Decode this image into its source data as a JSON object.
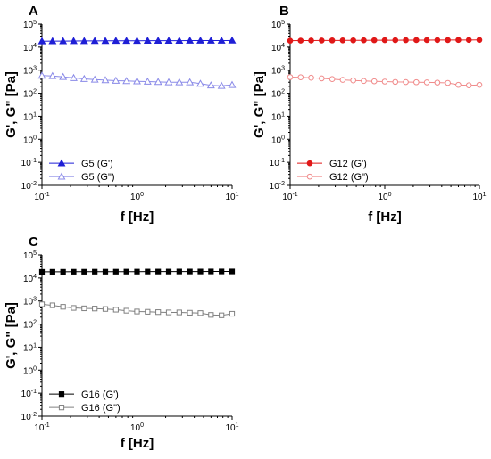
{
  "chart_data": [
    {
      "panel": "A",
      "type": "scatter",
      "xscale": "log",
      "yscale": "log",
      "xlim": [
        0.1,
        10
      ],
      "ylim": [
        0.01,
        100000
      ],
      "xlabel": "f [Hz]",
      "ylabel": "G', G\" [Pa]",
      "x_ticks": [
        "10",
        "10",
        "10"
      ],
      "x_tick_exps": [
        "-1",
        "0",
        "1"
      ],
      "y_ticks": [
        "10",
        "10",
        "10",
        "10",
        "10",
        "10",
        "10",
        "10"
      ],
      "y_tick_exps": [
        "-2",
        "-1",
        "0",
        "1",
        "2",
        "3",
        "4",
        "5"
      ],
      "legend_position": "lower-left",
      "series": [
        {
          "name": "G5 (G')",
          "color": "#1f1fd6",
          "marker": "triangle",
          "filled": true,
          "x": [
            0.1,
            0.1292,
            0.1668,
            0.2154,
            0.2783,
            0.3594,
            0.4642,
            0.5995,
            0.7743,
            1.0,
            1.2915,
            1.6681,
            2.1544,
            2.7826,
            3.5938,
            4.6416,
            5.9948,
            7.7426,
            10.0
          ],
          "y": [
            18000,
            18200,
            18300,
            18400,
            18500,
            18600,
            18700,
            18800,
            18800,
            18900,
            19000,
            19000,
            19100,
            19100,
            19200,
            19200,
            19300,
            19300,
            19400
          ]
        },
        {
          "name": "G5 (G\")",
          "color": "#8a8ae8",
          "marker": "triangle",
          "filled": false,
          "x": [
            0.1,
            0.1292,
            0.1668,
            0.2154,
            0.2783,
            0.3594,
            0.4642,
            0.5995,
            0.7743,
            1.0,
            1.2915,
            1.6681,
            2.1544,
            2.7826,
            3.5938,
            4.6416,
            5.9948,
            7.7426,
            10.0
          ],
          "y": [
            580,
            560,
            510,
            460,
            420,
            390,
            370,
            350,
            340,
            330,
            320,
            310,
            300,
            300,
            300,
            260,
            220,
            210,
            230
          ]
        }
      ]
    },
    {
      "panel": "B",
      "type": "scatter",
      "xscale": "log",
      "yscale": "log",
      "xlim": [
        0.1,
        10
      ],
      "ylim": [
        0.01,
        100000
      ],
      "xlabel": "f [Hz]",
      "ylabel": "G', G\" [Pa]",
      "x_ticks": [
        "10",
        "10",
        "10"
      ],
      "x_tick_exps": [
        "-1",
        "0",
        "1"
      ],
      "y_ticks": [
        "10",
        "10",
        "10",
        "10",
        "10",
        "10",
        "10",
        "10"
      ],
      "y_tick_exps": [
        "-2",
        "-1",
        "0",
        "1",
        "2",
        "3",
        "4",
        "5"
      ],
      "legend_position": "lower-left",
      "series": [
        {
          "name": "G12 (G')",
          "color": "#e01818",
          "marker": "circle",
          "filled": true,
          "x": [
            0.1,
            0.1292,
            0.1668,
            0.2154,
            0.2783,
            0.3594,
            0.4642,
            0.5995,
            0.7743,
            1.0,
            1.2915,
            1.6681,
            2.1544,
            2.7826,
            3.5938,
            4.6416,
            5.9948,
            7.7426,
            10.0
          ],
          "y": [
            19000,
            19200,
            19300,
            19400,
            19500,
            19600,
            19700,
            19800,
            19900,
            20000,
            20000,
            20100,
            20200,
            20200,
            20300,
            20300,
            20400,
            20400,
            20500
          ]
        },
        {
          "name": "G12 (G\")",
          "color": "#f08a8a",
          "marker": "circle",
          "filled": false,
          "x": [
            0.1,
            0.1292,
            0.1668,
            0.2154,
            0.2783,
            0.3594,
            0.4642,
            0.5995,
            0.7743,
            1.0,
            1.2915,
            1.6681,
            2.1544,
            2.7826,
            3.5938,
            4.6416,
            5.9948,
            7.7426,
            10.0
          ],
          "y": [
            500,
            490,
            470,
            440,
            410,
            380,
            360,
            340,
            330,
            320,
            310,
            305,
            300,
            295,
            290,
            280,
            230,
            220,
            230
          ]
        }
      ]
    },
    {
      "panel": "C",
      "type": "scatter",
      "xscale": "log",
      "yscale": "log",
      "xlim": [
        0.1,
        10
      ],
      "ylim": [
        0.01,
        100000
      ],
      "xlabel": "f [Hz]",
      "ylabel": "G', G\" [Pa]",
      "x_ticks": [
        "10",
        "10",
        "10"
      ],
      "x_tick_exps": [
        "-1",
        "0",
        "1"
      ],
      "y_ticks": [
        "10",
        "10",
        "10",
        "10",
        "10",
        "10",
        "10",
        "10"
      ],
      "y_tick_exps": [
        "-2",
        "-1",
        "0",
        "1",
        "2",
        "3",
        "4",
        "5"
      ],
      "legend_position": "lower-left",
      "series": [
        {
          "name": "G16 (G')",
          "color": "#000000",
          "marker": "square",
          "filled": true,
          "x": [
            0.1,
            0.1292,
            0.1668,
            0.2154,
            0.2783,
            0.3594,
            0.4642,
            0.5995,
            0.7743,
            1.0,
            1.2915,
            1.6681,
            2.1544,
            2.7826,
            3.5938,
            4.6416,
            5.9948,
            7.7426,
            10.0
          ],
          "y": [
            18500,
            18600,
            18600,
            18700,
            18700,
            18800,
            18800,
            18800,
            18900,
            18900,
            19000,
            19000,
            19000,
            19100,
            19100,
            19100,
            19200,
            19200,
            19200
          ]
        },
        {
          "name": "G16 (G\")",
          "color": "#808080",
          "marker": "square",
          "filled": false,
          "x": [
            0.1,
            0.1292,
            0.1668,
            0.2154,
            0.2783,
            0.3594,
            0.4642,
            0.5995,
            0.7743,
            1.0,
            1.2915,
            1.6681,
            2.1544,
            2.7826,
            3.5938,
            4.6416,
            5.9948,
            7.7426,
            10.0
          ],
          "y": [
            720,
            650,
            560,
            500,
            480,
            470,
            450,
            420,
            380,
            350,
            340,
            330,
            320,
            320,
            310,
            300,
            250,
            240,
            280
          ]
        }
      ]
    }
  ]
}
